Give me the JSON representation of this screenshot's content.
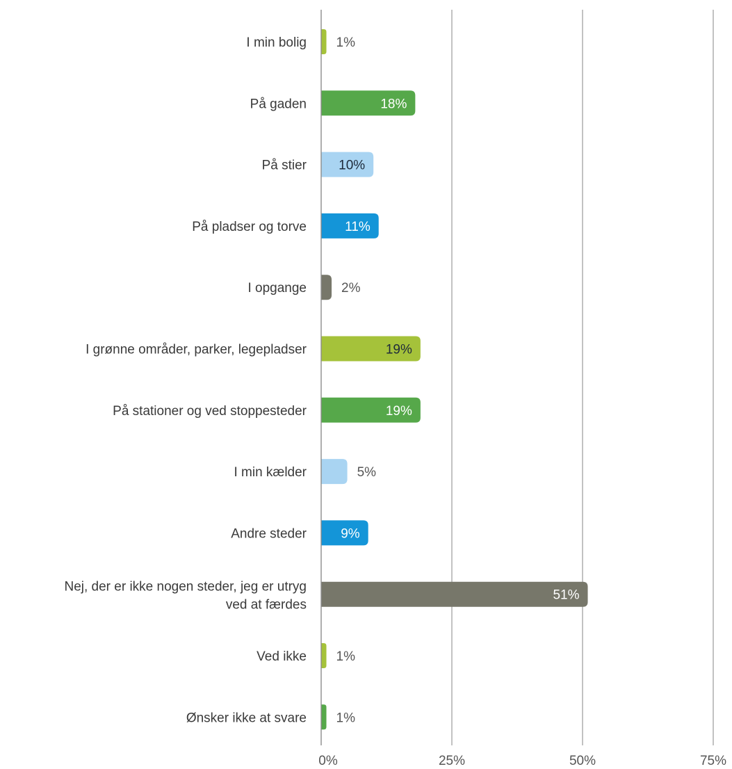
{
  "chart_data": {
    "type": "bar",
    "orientation": "horizontal",
    "categories": [
      "I min bolig",
      "På gaden",
      "På stier",
      "På pladser og torve",
      "I opgange",
      "I grønne områder, parker, legepladser",
      "På stationer og ved stoppesteder",
      "I min kælder",
      "Andre steder",
      "Nej, der er ikke nogen steder, jeg er utryg ved at færdes",
      "Ved ikke",
      "Ønsker ikke at svare"
    ],
    "values": [
      1,
      18,
      10,
      11,
      2,
      19,
      19,
      5,
      9,
      51,
      1,
      1
    ],
    "value_labels": [
      "1%",
      "18%",
      "10%",
      "11%",
      "2%",
      "19%",
      "19%",
      "5%",
      "9%",
      "51%",
      "1%",
      "1%"
    ],
    "colors": [
      "#a5c23a",
      "#56a84a",
      "#a9d4f2",
      "#1495d8",
      "#77776a",
      "#a5c23a",
      "#56a84a",
      "#a9d4f2",
      "#1495d8",
      "#77776a",
      "#a5c23a",
      "#56a84a"
    ],
    "label_colors": [
      "#555555",
      "#ffffff",
      "#1e2a3a",
      "#ffffff",
      "#555555",
      "#1e2a3a",
      "#ffffff",
      "#555555",
      "#ffffff",
      "#ffffff",
      "#555555",
      "#555555"
    ],
    "xlim": [
      0,
      75
    ],
    "xticks": [
      0,
      25,
      50,
      75
    ],
    "xtick_labels": [
      "0%",
      "25%",
      "50%",
      "75%"
    ],
    "grid": "vertical",
    "gridline_color": "#9a9a9a",
    "title": "",
    "xlabel": "",
    "ylabel": ""
  }
}
